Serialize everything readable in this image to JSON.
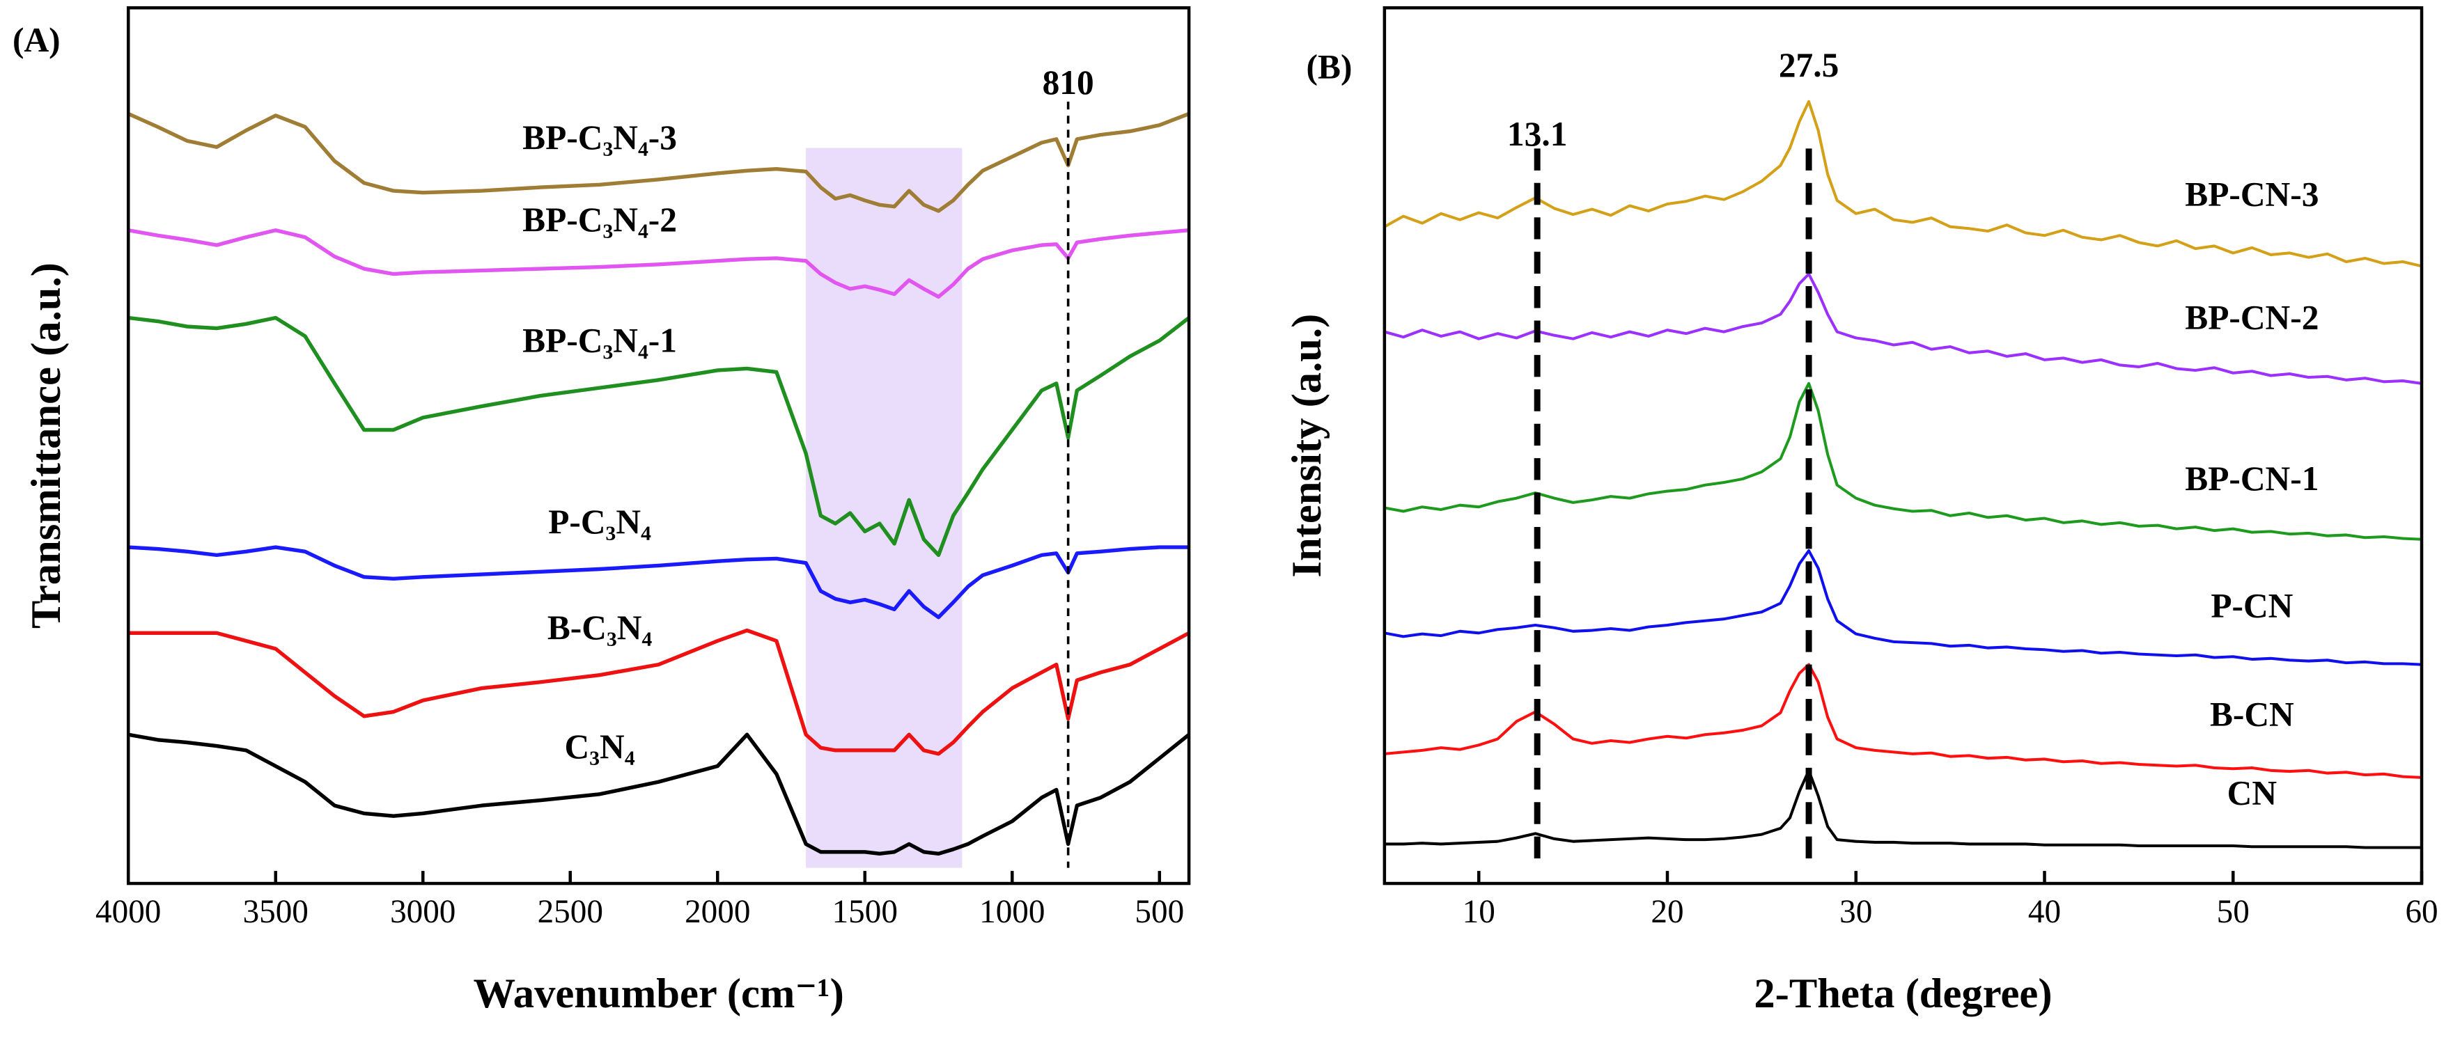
{
  "chart_data": [
    {
      "type": "line",
      "panel_label": "(A)",
      "x_label": "Wavenumber (cm⁻¹)",
      "y_label": "Transmittance (a.u.)",
      "xlim": [
        4000,
        400
      ],
      "xticks": [
        4000,
        3500,
        3000,
        2500,
        2000,
        1500,
        1000,
        500
      ],
      "ylim": [
        0,
        100
      ],
      "highlight": {
        "x": [
          1700,
          1170
        ],
        "color": "#e9ddfb"
      },
      "annotations": [
        {
          "text": "810",
          "x": 810
        }
      ],
      "x": [
        4000,
        3900,
        3800,
        3700,
        3600,
        3500,
        3400,
        3300,
        3200,
        3100,
        3000,
        2800,
        2600,
        2400,
        2200,
        2000,
        1900,
        1800,
        1700,
        1650,
        1600,
        1550,
        1500,
        1450,
        1400,
        1350,
        1300,
        1250,
        1200,
        1150,
        1100,
        1000,
        900,
        850,
        810,
        780,
        700,
        600,
        500,
        400
      ],
      "series": [
        {
          "name": "BP-C₃N₄-3",
          "color": "#a07d35",
          "values": [
            87.9,
            86.4,
            84.8,
            84.1,
            86,
            87.7,
            86.4,
            82.5,
            80,
            79.1,
            78.9,
            79.1,
            79.5,
            79.8,
            80.4,
            81.1,
            81.4,
            81.6,
            81.3,
            79.5,
            78.2,
            78.6,
            78,
            77.5,
            77.3,
            79.1,
            77.5,
            76.8,
            78,
            79.8,
            81.4,
            83,
            84.6,
            85,
            82,
            85,
            85.5,
            85.9,
            86.6,
            87.9
          ]
        },
        {
          "name": "BP-C₃N₄-2",
          "color": "#e155f0",
          "values": [
            74.6,
            74,
            73.5,
            72.9,
            73.8,
            74.6,
            73.8,
            71.6,
            70.2,
            69.6,
            69.8,
            70,
            70.2,
            70.4,
            70.7,
            71.1,
            71.3,
            71.4,
            71.1,
            69.6,
            68.6,
            67.9,
            68.2,
            67.8,
            67.3,
            68.9,
            67.9,
            67,
            68.4,
            70.2,
            71.3,
            72.3,
            72.9,
            73,
            71.4,
            73.2,
            73.6,
            74,
            74.3,
            74.6
          ]
        },
        {
          "name": "BP-C₃N₄-1",
          "color": "#1f8f1f",
          "values": [
            64.6,
            64.2,
            63.6,
            63.4,
            63.9,
            64.6,
            62.5,
            57.1,
            51.8,
            51.8,
            53.2,
            54.5,
            55.7,
            56.6,
            57.5,
            58.6,
            58.8,
            58.4,
            49.1,
            42,
            41.1,
            42.3,
            40.2,
            41.1,
            38.8,
            43.8,
            39.3,
            37.5,
            42,
            44.6,
            47.3,
            51.8,
            56.3,
            57.1,
            50.9,
            56.3,
            58,
            60.2,
            62,
            64.6
          ]
        },
        {
          "name": "P-C₃N₄",
          "color": "#1a1aff",
          "values": [
            38.4,
            38.2,
            37.9,
            37.5,
            37.9,
            38.4,
            37.9,
            36.3,
            35,
            34.8,
            35,
            35.3,
            35.6,
            35.9,
            36.3,
            36.8,
            37,
            37.1,
            36.6,
            33.4,
            32.5,
            32.1,
            32.4,
            31.9,
            31.3,
            33.4,
            31.6,
            30.4,
            32.1,
            33.9,
            35.2,
            36.3,
            37.5,
            37.7,
            35.5,
            37.7,
            37.9,
            38.2,
            38.4,
            38.4
          ]
        },
        {
          "name": "B-C₃N₄",
          "color": "#ee1111",
          "values": [
            28.6,
            28.6,
            28.6,
            28.6,
            27.7,
            26.8,
            24.1,
            21.4,
            19.1,
            19.6,
            20.9,
            22.3,
            23,
            23.8,
            25,
            27.7,
            28.9,
            27.7,
            17,
            15.5,
            15.2,
            15.2,
            15.2,
            15.2,
            15.2,
            17,
            15.2,
            14.8,
            16.1,
            17.9,
            19.6,
            22.3,
            24.1,
            25,
            18.8,
            23.2,
            24.1,
            25,
            26.8,
            28.6
          ]
        },
        {
          "name": "C₃N₄",
          "color": "#000000",
          "values": [
            17,
            16.4,
            16.1,
            15.7,
            15.2,
            13.4,
            11.6,
            8.9,
            8,
            7.7,
            8,
            8.9,
            9.5,
            10.2,
            11.6,
            13.4,
            17,
            12.5,
            4.5,
            3.6,
            3.6,
            3.6,
            3.6,
            3.4,
            3.6,
            4.5,
            3.6,
            3.4,
            3.9,
            4.5,
            5.4,
            7.1,
            9.8,
            10.7,
            4.5,
            8.9,
            9.8,
            11.6,
            14.3,
            17
          ]
        }
      ]
    },
    {
      "type": "line",
      "panel_label": "(B)",
      "x_label": "2-Theta (degree)",
      "y_label": "Intensity (a.u.)",
      "xlim": [
        5,
        60
      ],
      "xticks": [
        10,
        20,
        30,
        40,
        50,
        60
      ],
      "ylim": [
        0,
        100
      ],
      "annotations": [
        {
          "text": "13.1",
          "x": 13.1
        },
        {
          "text": "27.5",
          "x": 27.5
        }
      ],
      "x": [
        5,
        6,
        7,
        8,
        9,
        10,
        11,
        12,
        13,
        14,
        15,
        16,
        17,
        18,
        19,
        20,
        21,
        22,
        23,
        24,
        25,
        26,
        26.5,
        27,
        27.5,
        28,
        28.5,
        29,
        30,
        31,
        32,
        33,
        34,
        35,
        36,
        37,
        38,
        39,
        40,
        41,
        42,
        43,
        44,
        45,
        46,
        47,
        48,
        49,
        50,
        51,
        52,
        53,
        54,
        55,
        56,
        57,
        58,
        59,
        60
      ],
      "series": [
        {
          "name": "BP-CN-3",
          "color": "#d4a017",
          "values": [
            75,
            76.2,
            75.4,
            76.5,
            75.8,
            76.6,
            76,
            77.2,
            78.3,
            77.1,
            76.4,
            77,
            76.3,
            77.4,
            76.8,
            77.6,
            77.9,
            78.5,
            78.1,
            79,
            80.2,
            82,
            84,
            87,
            89.3,
            86,
            81,
            78,
            76.5,
            77,
            75.8,
            75.5,
            76,
            75,
            74.8,
            74.5,
            75.2,
            74.3,
            74,
            74.6,
            73.8,
            73.5,
            74,
            73.2,
            72.8,
            73.4,
            72.5,
            72.8,
            72,
            72.6,
            71.8,
            72,
            71.5,
            71.9,
            71,
            71.4,
            70.8,
            71,
            70.5
          ]
        },
        {
          "name": "BP-CN-2",
          "color": "#9b30ff",
          "values": [
            63,
            62.4,
            63.2,
            62.5,
            63,
            62.2,
            62.8,
            62.3,
            63.1,
            62.6,
            62.2,
            62.9,
            62.4,
            63,
            62.5,
            63.2,
            62.8,
            63.4,
            63,
            63.6,
            64,
            65,
            66.5,
            68.5,
            69.6,
            67.5,
            65,
            63,
            62.3,
            62,
            61.5,
            61.8,
            61,
            61.3,
            60.6,
            60.8,
            60.2,
            60.5,
            59.8,
            60,
            59.5,
            59.8,
            59.2,
            59,
            59.4,
            58.8,
            58.6,
            58.9,
            58.3,
            58.5,
            58,
            58.2,
            57.8,
            57.9,
            57.5,
            57.7,
            57.3,
            57.4,
            57.1
          ]
        },
        {
          "name": "BP-CN-1",
          "color": "#1e9a1e",
          "values": [
            42.9,
            42.5,
            43,
            42.7,
            43.2,
            43,
            43.6,
            44,
            44.6,
            44,
            43.5,
            43.8,
            44.2,
            44,
            44.5,
            44.8,
            45,
            45.5,
            45.8,
            46.2,
            47,
            48.5,
            51,
            55,
            57.1,
            54,
            49,
            45.5,
            44,
            43.2,
            42.8,
            42.5,
            42.6,
            42,
            42.3,
            41.8,
            42,
            41.5,
            41.7,
            41.2,
            41.4,
            41,
            41.2,
            40.8,
            40.9,
            40.5,
            40.7,
            40.3,
            40.5,
            40.1,
            40.2,
            39.9,
            40,
            39.7,
            39.8,
            39.5,
            39.6,
            39.4,
            39.3
          ]
        },
        {
          "name": "P-CN",
          "color": "#1010ee",
          "values": [
            28.6,
            28.2,
            28.5,
            28.3,
            28.8,
            28.6,
            29,
            29.2,
            29.5,
            29.2,
            28.8,
            28.9,
            29.1,
            28.9,
            29.3,
            29.5,
            29.8,
            30,
            30.2,
            30.6,
            31,
            32,
            34,
            36.5,
            38,
            36,
            32.5,
            30,
            28.5,
            28,
            27.6,
            27.5,
            27.4,
            27.1,
            27.2,
            26.9,
            27,
            26.8,
            26.7,
            26.5,
            26.6,
            26.3,
            26.4,
            26.2,
            26.1,
            26,
            26.1,
            25.8,
            25.9,
            25.6,
            25.7,
            25.5,
            25.4,
            25.5,
            25.2,
            25.3,
            25.1,
            25.1,
            25
          ]
        },
        {
          "name": "B-CN",
          "color": "#ff1010",
          "values": [
            14.8,
            15,
            15.2,
            15.5,
            15.3,
            15.8,
            16.5,
            18.5,
            19.6,
            18.2,
            16.5,
            16,
            16.3,
            16.1,
            16.5,
            16.8,
            16.6,
            17,
            17.2,
            17.5,
            18,
            19.5,
            22,
            24,
            25,
            23,
            19,
            16.5,
            15.5,
            15.2,
            15,
            14.8,
            14.9,
            14.5,
            14.6,
            14.3,
            14.4,
            14.1,
            14.2,
            13.9,
            14,
            13.7,
            13.8,
            13.6,
            13.5,
            13.4,
            13.5,
            13.2,
            13.1,
            13.2,
            12.9,
            12.8,
            12.9,
            12.6,
            12.7,
            12.4,
            12.5,
            12.2,
            12.1
          ]
        },
        {
          "name": "CN",
          "color": "#000000",
          "values": [
            4.5,
            4.5,
            4.6,
            4.5,
            4.6,
            4.7,
            4.8,
            5.2,
            5.7,
            5.1,
            4.8,
            4.9,
            5,
            5.1,
            5.2,
            5.1,
            5,
            5,
            5.1,
            5.3,
            5.6,
            6.3,
            7.5,
            10.5,
            12.9,
            10,
            6.5,
            5,
            4.8,
            4.7,
            4.7,
            4.6,
            4.6,
            4.6,
            4.5,
            4.5,
            4.5,
            4.5,
            4.4,
            4.4,
            4.4,
            4.4,
            4.4,
            4.3,
            4.3,
            4.3,
            4.3,
            4.3,
            4.3,
            4.2,
            4.2,
            4.2,
            4.2,
            4.2,
            4.2,
            4.1,
            4.1,
            4.1,
            4.1
          ]
        }
      ]
    }
  ]
}
